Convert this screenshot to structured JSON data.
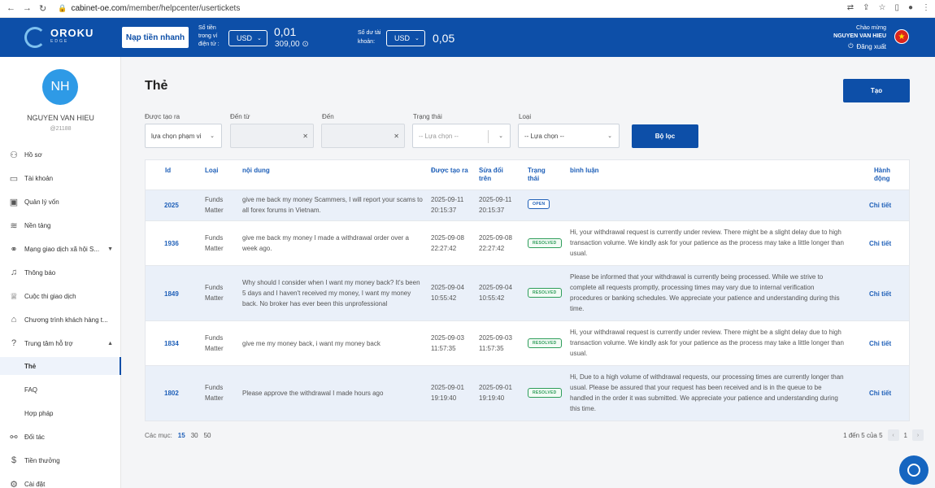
{
  "browser": {
    "url_host": "cabinet-oe.com",
    "url_path": "/member/helpcenter/usertickets"
  },
  "header": {
    "logo_text": "OROKU",
    "logo_sub": "EDGE",
    "deposit_btn": "Nạp tiền nhanh",
    "wallet_label": "Số tiền trong ví điện tử :",
    "wallet_currency": "USD",
    "wallet_amount": "0,01",
    "wallet_sub_amount": "309,00",
    "balance_label": "Số dư tài khoản:",
    "balance_currency": "USD",
    "balance_amount": "0,05",
    "greeting": "Chào mừng",
    "user_name": "NGUYEN VAN HIEU",
    "logout": "Đăng xuất"
  },
  "sidebar": {
    "avatar_initials": "NH",
    "name": "NGUYEN VAN HIEU",
    "user_id": "@21188",
    "items": [
      {
        "label": "Hồ sơ",
        "icon": "user-icon"
      },
      {
        "label": "Tài khoản",
        "icon": "card-icon"
      },
      {
        "label": "Quản lý vốn",
        "icon": "wallet-icon"
      },
      {
        "label": "Nền tảng",
        "icon": "layers-icon"
      },
      {
        "label": "Mạng giao dịch xã hội S...",
        "icon": "social-icon"
      },
      {
        "label": "Thông báo",
        "icon": "bell-icon"
      },
      {
        "label": "Cuộc thi giao dịch",
        "icon": "trophy-icon"
      },
      {
        "label": "Chương trình khách hàng t...",
        "icon": "gift-icon"
      },
      {
        "label": "Trung tâm hỗ trợ",
        "icon": "help-icon"
      },
      {
        "label": "Thẻ"
      },
      {
        "label": "FAQ"
      },
      {
        "label": "Hợp pháp"
      },
      {
        "label": "Đối tác",
        "icon": "handshake-icon"
      },
      {
        "label": "Tiền thưởng",
        "icon": "dollar-icon"
      },
      {
        "label": "Cài đặt",
        "icon": "settings-icon"
      }
    ]
  },
  "main": {
    "title": "Thẻ",
    "create_btn": "Tạo",
    "filters": {
      "created_label": "Được tạo ra",
      "created_value": "lựa chọn phạm vi",
      "from_label": "Đến từ",
      "to_label": "Đến",
      "status_label": "Trạng thái",
      "status_placeholder": "-- Lựa chọn --",
      "type_label": "Loại",
      "type_placeholder": "-- Lựa chọn --",
      "filter_btn": "Bộ lọc"
    },
    "table": {
      "headers": {
        "id": "Id",
        "type": "Loại",
        "content": "nội dung",
        "created": "Được tạo ra",
        "modified": "Sửa đổi trên",
        "status": "Trạng thái",
        "comment": "bình luận",
        "action": "Hành động"
      },
      "rows": [
        {
          "id": "2025",
          "type": "Funds Matter",
          "content": "give me back my money Scammers, I will report your scams to all forex forums in Vietnam.",
          "created": "2025-09-11 20:15:37",
          "modified": "2025-09-11 20:15:37",
          "status": "OPEN",
          "comment": "",
          "action": "Chi tiết"
        },
        {
          "id": "1936",
          "type": "Funds Matter",
          "content": "give me back my money I made a withdrawal order over a week ago.",
          "created": "2025-09-08 22:27:42",
          "modified": "2025-09-08 22:27:42",
          "status": "RESOLVED",
          "comment": "Hi, your withdrawal request is currently under review. There might be a slight delay due to high transaction volume. We kindly ask for your patience as the process may take a little longer than usual.",
          "action": "Chi tiết"
        },
        {
          "id": "1849",
          "type": "Funds Matter",
          "content": "Why should I consider when I want my money back? It's been 5 days and I haven't received my money, I want my money back. No broker has ever been this unprofessional",
          "created": "2025-09-04 10:55:42",
          "modified": "2025-09-04 10:55:42",
          "status": "RESOLVED",
          "comment": "Please be informed that your withdrawal is currently being processed. While we strive to complete all requests promptly, processing times may vary due to internal verification procedures or banking schedules. We appreciate your patience and understanding during this time.",
          "action": "Chi tiết"
        },
        {
          "id": "1834",
          "type": "Funds Matter",
          "content": "give me my money back, i want my money back",
          "created": "2025-09-03 11:57:35",
          "modified": "2025-09-03 11:57:35",
          "status": "RESOLVED",
          "comment": "Hi, your withdrawal request is currently under review. There might be a slight delay due to high transaction volume. We kindly ask for your patience as the process may take a little longer than usual.",
          "action": "Chi tiết"
        },
        {
          "id": "1802",
          "type": "Funds Matter",
          "content": "Please approve the withdrawal I made hours ago",
          "created": "2025-09-01 19:19:40",
          "modified": "2025-09-01 19:19:40",
          "status": "RESOLVED",
          "comment": "Hi, Due to a high volume of withdrawal requests, our processing times are currently longer than usual. Please be assured that your request has been received and is in the queue to be handled in the order it was submitted. We appreciate your patience and understanding during this time.",
          "action": "Chi tiết"
        }
      ]
    },
    "pagination": {
      "per_page_label": "Các mục:",
      "options": [
        "15",
        "30",
        "50"
      ],
      "summary": "1 đến 5 của 5",
      "current_page": "1"
    }
  }
}
